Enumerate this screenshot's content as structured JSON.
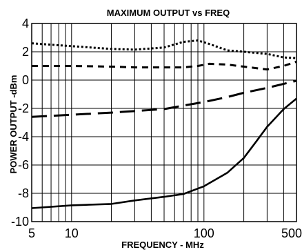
{
  "chart_data": {
    "type": "line",
    "title": "MAXIMUM OUTPUT vs FREQ",
    "xlabel": "FREQUENCY - MHz",
    "ylabel": "POWER OUTPUT -dBm",
    "x_scale": "log",
    "xlim": [
      5,
      500
    ],
    "ylim": [
      -10,
      4
    ],
    "grid": true,
    "x_ticks": [
      {
        "value": 5,
        "label": "5"
      },
      {
        "value": 10,
        "label": "10"
      },
      {
        "value": 100,
        "label": "100"
      },
      {
        "value": 500,
        "label": "500"
      }
    ],
    "y_ticks": [
      {
        "value": 4,
        "label": "4"
      },
      {
        "value": 2,
        "label": "2"
      },
      {
        "value": 0,
        "label": "0"
      },
      {
        "value": -2,
        "label": "-2"
      },
      {
        "value": -4,
        "label": "-4"
      },
      {
        "value": -6,
        "label": "-6"
      },
      {
        "value": -8,
        "label": "-8"
      },
      {
        "value": -10,
        "label": "-10"
      }
    ],
    "series": [
      {
        "style": "dotted",
        "x": [
          5,
          7,
          10,
          20,
          30,
          50,
          70,
          90,
          110,
          150,
          200,
          300,
          400,
          500
        ],
        "y": [
          2.6,
          2.5,
          2.4,
          2.2,
          2.15,
          2.3,
          2.7,
          2.8,
          2.55,
          2.1,
          2.0,
          1.85,
          1.6,
          1.55
        ]
      },
      {
        "style": "short-dash",
        "x": [
          5,
          10,
          20,
          30,
          50,
          70,
          90,
          110,
          150,
          200,
          300,
          400,
          500
        ],
        "y": [
          1.0,
          1.0,
          0.95,
          0.9,
          0.9,
          0.9,
          1.0,
          1.15,
          1.1,
          0.95,
          0.75,
          1.0,
          1.3
        ]
      },
      {
        "style": "long-dash",
        "x": [
          5,
          10,
          20,
          50,
          70,
          100,
          150,
          200,
          300,
          500
        ],
        "y": [
          -2.6,
          -2.45,
          -2.3,
          -2.05,
          -1.8,
          -1.55,
          -1.2,
          -0.9,
          -0.55,
          -0.05
        ]
      },
      {
        "style": "solid",
        "x": [
          5,
          10,
          20,
          30,
          50,
          70,
          100,
          150,
          200,
          250,
          300,
          400,
          500
        ],
        "y": [
          -9.05,
          -8.85,
          -8.75,
          -8.5,
          -8.25,
          -8.05,
          -7.5,
          -6.55,
          -5.5,
          -4.3,
          -3.3,
          -2.05,
          -1.3
        ]
      }
    ]
  }
}
